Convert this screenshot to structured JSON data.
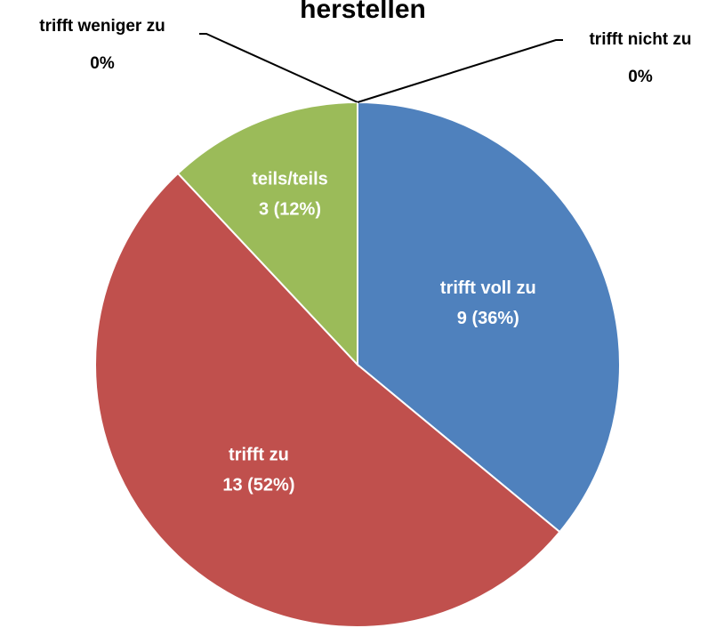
{
  "chart_data": {
    "type": "pie",
    "title": "herstellen",
    "categories": [
      "trifft voll zu",
      "trifft zu",
      "teils/teils",
      "trifft weniger zu",
      "trifft nicht zu"
    ],
    "values": [
      9,
      13,
      3,
      0,
      0
    ],
    "value_labels": [
      "9 (36%)",
      "13 (52%)",
      "3 (12%)",
      "0%",
      "0%"
    ],
    "colors": [
      "#4f81bd",
      "#c0504d",
      "#9bbb59",
      "#8064a2",
      "#4bacc6"
    ]
  }
}
